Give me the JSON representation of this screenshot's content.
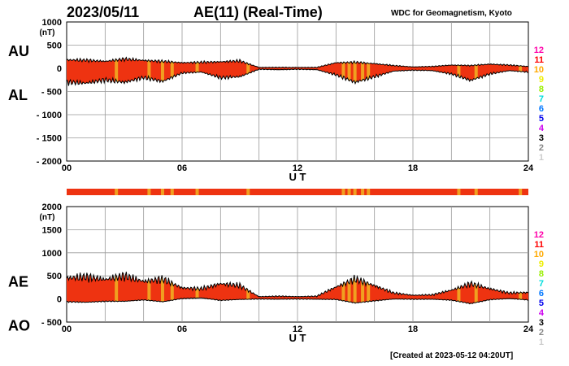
{
  "header": {
    "date": "2023/05/11",
    "title": "AE(11) (Real-Time)",
    "source": "WDC for Geomagnetism, Kyoto",
    "created": "[Created at 2023-05-12 04:20UT]"
  },
  "colors": {
    "fill_main": "#ee3311",
    "fill_alt": "#f0a020",
    "legend": {
      "12": "#ff00aa",
      "11": "#ff0000",
      "10": "#ffaa00",
      "9": "#eeee00",
      "8": "#99ee00",
      "7": "#00dddd",
      "6": "#0077ff",
      "5": "#0000ee",
      "4": "#cc00ee",
      "3": "#000000",
      "2": "#888888",
      "1": "#cccccc"
    }
  },
  "legend_levels": [
    "12",
    "11",
    "10",
    "9",
    "8",
    "7",
    "6",
    "5",
    "4",
    "3",
    "2",
    "1"
  ],
  "chart_data": [
    {
      "type": "area",
      "panel": "AU/AL",
      "series": [
        {
          "name": "AU",
          "x": [
            0,
            1,
            2,
            3,
            4,
            5,
            6,
            7,
            8,
            9,
            10,
            11,
            12,
            13,
            14,
            15,
            16,
            17,
            18,
            19,
            20,
            21,
            22,
            23,
            24
          ],
          "values": [
            180,
            175,
            150,
            200,
            170,
            150,
            120,
            130,
            140,
            160,
            20,
            20,
            20,
            20,
            120,
            130,
            100,
            60,
            30,
            40,
            70,
            60,
            90,
            70,
            40
          ]
        },
        {
          "name": "AL",
          "x": [
            0,
            1,
            2,
            3,
            4,
            5,
            6,
            7,
            8,
            9,
            10,
            11,
            12,
            13,
            14,
            15,
            16,
            17,
            18,
            19,
            20,
            21,
            22,
            23,
            24
          ],
          "values": [
            -300,
            -320,
            -250,
            -300,
            -200,
            -280,
            -100,
            -80,
            -200,
            -180,
            -20,
            -30,
            -20,
            -30,
            -140,
            -300,
            -180,
            -60,
            -40,
            -50,
            -120,
            -260,
            -120,
            -50,
            -80
          ]
        }
      ],
      "y_label_top": "AU",
      "y_label_bottom": "AL",
      "y_unit": "(nT)",
      "ylim": [
        -2000,
        1000
      ],
      "yticks": [
        "1000",
        "500",
        "0",
        "- 500",
        "- 1000",
        "- 1500",
        "- 2000"
      ],
      "xlim": [
        0,
        24
      ],
      "xticks": [
        "00",
        "06",
        "12",
        "18",
        "24"
      ],
      "xlabel": "U T",
      "grid": true
    },
    {
      "type": "area",
      "panel": "AE/AO",
      "series": [
        {
          "name": "AE",
          "x": [
            0,
            1,
            2,
            3,
            4,
            5,
            6,
            7,
            8,
            9,
            10,
            11,
            12,
            13,
            14,
            15,
            16,
            17,
            18,
            19,
            20,
            21,
            22,
            23,
            24
          ],
          "values": [
            450,
            480,
            420,
            500,
            380,
            430,
            240,
            220,
            330,
            290,
            50,
            60,
            50,
            60,
            260,
            430,
            290,
            130,
            80,
            90,
            190,
            330,
            220,
            130,
            140
          ]
        },
        {
          "name": "AO",
          "x": [
            0,
            1,
            2,
            3,
            4,
            5,
            6,
            7,
            8,
            9,
            10,
            11,
            12,
            13,
            14,
            15,
            16,
            17,
            18,
            19,
            20,
            21,
            22,
            23,
            24
          ],
          "values": [
            -60,
            -70,
            -50,
            -50,
            -20,
            -60,
            10,
            25,
            -30,
            -10,
            0,
            -5,
            0,
            -5,
            -10,
            -85,
            -40,
            0,
            -5,
            -5,
            -25,
            -100,
            -15,
            10,
            -20
          ]
        }
      ],
      "y_label_top": "AE",
      "y_label_bottom": "AO",
      "y_unit": "(nT)",
      "ylim": [
        -500,
        2000
      ],
      "yticks": [
        "2000",
        "1500",
        "1000",
        "500",
        "0",
        "- 500"
      ],
      "xlim": [
        0,
        24
      ],
      "xticks": [
        "00",
        "06",
        "12",
        "18",
        "24"
      ],
      "xlabel": "U T",
      "grid": true
    }
  ]
}
